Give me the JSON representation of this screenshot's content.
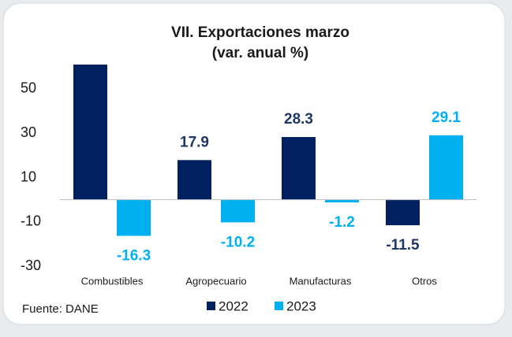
{
  "chart_data": {
    "type": "bar",
    "title": "VII. Exportaciones marzo",
    "subtitle": "(var. anual %)",
    "categories": [
      "Combustibles",
      "Agropecuario",
      "Manufacturas",
      "Otros"
    ],
    "series": [
      {
        "name": "2022",
        "color": "#002060",
        "values": [
          61,
          17.9,
          28.3,
          -11.5
        ],
        "value_labels": [
          null,
          "17.9",
          "28.3",
          "-11.5"
        ]
      },
      {
        "name": "2023",
        "color": "#00b0f0",
        "values": [
          -16.3,
          -10.2,
          -1.2,
          29.1
        ],
        "value_labels": [
          "-16.3",
          "-10.2",
          "-1.2",
          "29.1"
        ]
      }
    ],
    "ylim": [
      -36,
      61
    ],
    "yticks": [
      -30,
      -10,
      10,
      30,
      50
    ],
    "source": "Fuente: DANE",
    "legend": "bottom"
  }
}
